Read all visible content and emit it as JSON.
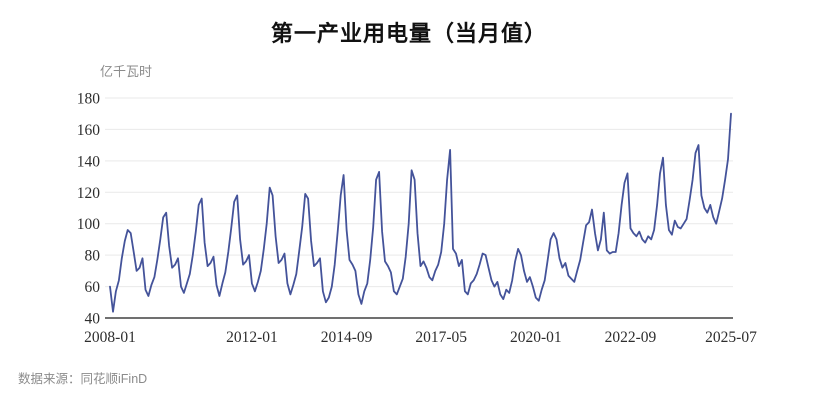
{
  "title": "第一产业用电量（当月值）",
  "unit_label": "亿千瓦时",
  "source_note": "数据来源：同花顺iFinD",
  "colors": {
    "line": "#44539A",
    "grid": "#E9E9E9",
    "axis": "#404040",
    "tick_text": "#2E2E2E",
    "muted_text": "#8B8B8B",
    "title_text": "#111111",
    "background": "#FFFFFF"
  },
  "chart_data": {
    "type": "line",
    "title": "第一产业用电量（当月值）",
    "ylabel": "亿千瓦时",
    "ylim": [
      40,
      180
    ],
    "y_ticks": [
      40,
      60,
      80,
      100,
      120,
      140,
      160,
      180
    ],
    "x_start": "2008-01",
    "x_end": "2025-07",
    "x_frequency": "monthly",
    "grid": "horizontal-only",
    "legend": "none",
    "x_tick_labels": [
      "2008-01",
      "2012-01",
      "2014-09",
      "2017-05",
      "2020-01",
      "2022-09",
      "2025-07"
    ],
    "x_tick_month_index": [
      0,
      48,
      80,
      112,
      144,
      176,
      210
    ],
    "series": [
      {
        "name": "第一产业用电量当月值",
        "values": [
          60,
          44,
          57,
          64,
          78,
          89,
          96,
          94,
          82,
          70,
          72,
          78,
          58,
          54,
          61,
          66,
          77,
          90,
          104,
          107,
          86,
          72,
          74,
          78,
          60,
          56,
          62,
          68,
          80,
          95,
          112,
          116,
          88,
          73,
          75,
          79,
          61,
          54,
          62,
          69,
          82,
          97,
          114,
          118,
          90,
          74,
          76,
          80,
          62,
          57,
          63,
          70,
          84,
          100,
          123,
          118,
          92,
          75,
          77,
          81,
          62,
          55,
          61,
          68,
          83,
          98,
          119,
          116,
          89,
          73,
          75,
          78,
          57,
          50,
          53,
          60,
          74,
          95,
          118,
          131,
          96,
          77,
          74,
          70,
          55,
          49,
          57,
          62,
          77,
          98,
          128,
          133,
          95,
          76,
          73,
          69,
          57,
          55,
          60,
          65,
          79,
          100,
          134,
          128,
          94,
          73,
          76,
          72,
          66,
          64,
          70,
          74,
          82,
          100,
          128,
          147,
          84,
          81,
          73,
          77,
          57,
          55,
          62,
          64,
          68,
          74,
          81,
          80,
          72,
          64,
          60,
          63,
          55,
          52,
          58,
          56,
          64,
          76,
          84,
          80,
          70,
          63,
          66,
          60,
          53,
          51,
          58,
          64,
          77,
          90,
          94,
          90,
          78,
          72,
          75,
          67,
          65,
          63,
          70,
          77,
          88,
          99,
          101,
          109,
          94,
          83,
          90,
          107,
          83,
          81,
          82,
          82,
          94,
          112,
          126,
          132,
          97,
          94,
          92,
          95,
          90,
          88,
          92,
          90,
          96,
          112,
          132,
          142,
          112,
          96,
          93,
          102,
          98,
          97,
          100,
          103,
          115,
          128,
          145,
          150,
          118,
          110,
          107,
          112,
          104,
          100,
          108,
          116,
          128,
          141,
          170
        ]
      }
    ]
  }
}
